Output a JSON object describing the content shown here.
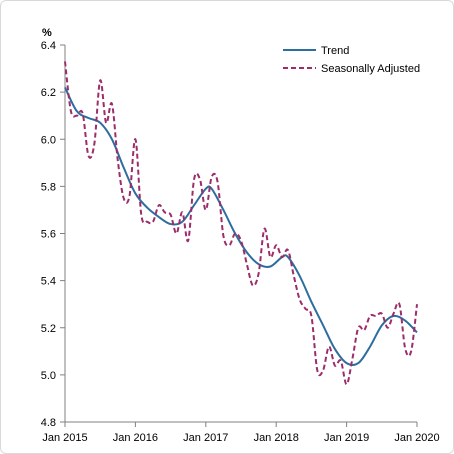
{
  "chart_data": {
    "type": "line",
    "title": "",
    "xlabel": "",
    "ylabel": "%",
    "ylim": [
      4.8,
      6.4
    ],
    "yticks": [
      "4.8",
      "5.0",
      "5.2",
      "5.4",
      "5.6",
      "5.8",
      "6.0",
      "6.2",
      "6.4"
    ],
    "xticks": [
      "Jan 2015",
      "Jan 2016",
      "Jan 2017",
      "Jan 2018",
      "Jan 2019",
      "Jan 2020"
    ],
    "xlim": [
      "2015-01",
      "2020-01"
    ],
    "grid": false,
    "legend_position": "top-right",
    "series": [
      {
        "name": "Trend",
        "color": "#2e6e9e",
        "style": "solid",
        "points": [
          [
            "2015-01",
            6.22
          ],
          [
            "2015-03",
            6.12
          ],
          [
            "2015-05",
            6.09
          ],
          [
            "2015-07",
            6.07
          ],
          [
            "2015-09",
            6.0
          ],
          [
            "2015-11",
            5.88
          ],
          [
            "2016-01",
            5.77
          ],
          [
            "2016-03",
            5.71
          ],
          [
            "2016-05",
            5.67
          ],
          [
            "2016-07",
            5.64
          ],
          [
            "2016-09",
            5.65
          ],
          [
            "2016-11",
            5.72
          ],
          [
            "2017-01",
            5.79
          ],
          [
            "2017-02",
            5.79
          ],
          [
            "2017-04",
            5.7
          ],
          [
            "2017-06",
            5.6
          ],
          [
            "2017-08",
            5.52
          ],
          [
            "2017-10",
            5.47
          ],
          [
            "2017-12",
            5.46
          ],
          [
            "2018-02",
            5.5
          ],
          [
            "2018-03",
            5.5
          ],
          [
            "2018-05",
            5.42
          ],
          [
            "2018-07",
            5.31
          ],
          [
            "2018-09",
            5.21
          ],
          [
            "2018-11",
            5.11
          ],
          [
            "2019-01",
            5.05
          ],
          [
            "2019-03",
            5.05
          ],
          [
            "2019-05",
            5.12
          ],
          [
            "2019-07",
            5.21
          ],
          [
            "2019-09",
            5.25
          ],
          [
            "2019-11",
            5.23
          ],
          [
            "2020-01",
            5.18
          ]
        ]
      },
      {
        "name": "Seasonally Adjusted",
        "color": "#9b2d6b",
        "style": "dashed",
        "points": [
          [
            "2015-01",
            6.33
          ],
          [
            "2015-02",
            6.12
          ],
          [
            "2015-03",
            6.1
          ],
          [
            "2015-04",
            6.11
          ],
          [
            "2015-05",
            5.93
          ],
          [
            "2015-06",
            5.98
          ],
          [
            "2015-07",
            6.25
          ],
          [
            "2015-08",
            6.07
          ],
          [
            "2015-09",
            6.15
          ],
          [
            "2015-10",
            5.91
          ],
          [
            "2015-11",
            5.75
          ],
          [
            "2015-12",
            5.76
          ],
          [
            "2016-01",
            6.0
          ],
          [
            "2016-02",
            5.68
          ],
          [
            "2016-03",
            5.65
          ],
          [
            "2016-04",
            5.65
          ],
          [
            "2016-05",
            5.72
          ],
          [
            "2016-06",
            5.69
          ],
          [
            "2016-07",
            5.68
          ],
          [
            "2016-08",
            5.6
          ],
          [
            "2016-09",
            5.69
          ],
          [
            "2016-10",
            5.57
          ],
          [
            "2016-11",
            5.83
          ],
          [
            "2016-12",
            5.83
          ],
          [
            "2017-01",
            5.7
          ],
          [
            "2017-02",
            5.84
          ],
          [
            "2017-03",
            5.82
          ],
          [
            "2017-04",
            5.59
          ],
          [
            "2017-05",
            5.55
          ],
          [
            "2017-06",
            5.6
          ],
          [
            "2017-07",
            5.57
          ],
          [
            "2017-08",
            5.47
          ],
          [
            "2017-09",
            5.38
          ],
          [
            "2017-10",
            5.43
          ],
          [
            "2017-11",
            5.62
          ],
          [
            "2017-12",
            5.5
          ],
          [
            "2018-01",
            5.55
          ],
          [
            "2018-02",
            5.5
          ],
          [
            "2018-03",
            5.53
          ],
          [
            "2018-04",
            5.42
          ],
          [
            "2018-05",
            5.32
          ],
          [
            "2018-06",
            5.28
          ],
          [
            "2018-07",
            5.25
          ],
          [
            "2018-08",
            5.02
          ],
          [
            "2018-09",
            5.02
          ],
          [
            "2018-10",
            5.12
          ],
          [
            "2018-11",
            5.04
          ],
          [
            "2018-12",
            5.06
          ],
          [
            "2019-01",
            4.96
          ],
          [
            "2019-02",
            5.07
          ],
          [
            "2019-03",
            5.2
          ],
          [
            "2019-04",
            5.19
          ],
          [
            "2019-05",
            5.25
          ],
          [
            "2019-06",
            5.25
          ],
          [
            "2019-07",
            5.26
          ],
          [
            "2019-08",
            5.2
          ],
          [
            "2019-09",
            5.26
          ],
          [
            "2019-10",
            5.3
          ],
          [
            "2019-11",
            5.11
          ],
          [
            "2019-12",
            5.1
          ],
          [
            "2020-01",
            5.3
          ]
        ]
      }
    ]
  }
}
